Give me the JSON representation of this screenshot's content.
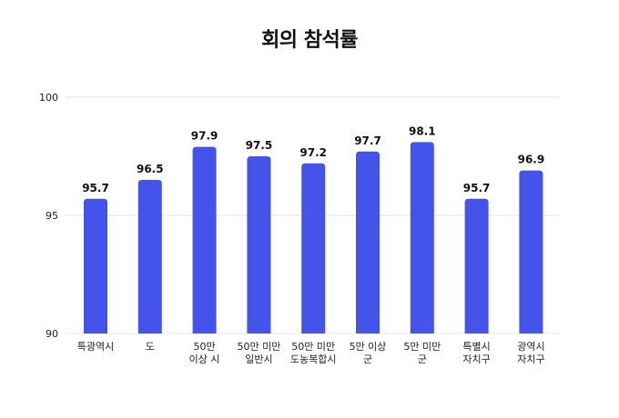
{
  "chart_data": {
    "type": "bar",
    "title": "회의 참석률",
    "categories": [
      [
        "특광역시"
      ],
      [
        "도"
      ],
      [
        "50만",
        "이상 시"
      ],
      [
        "50만 미만",
        "일반시"
      ],
      [
        "50만 미만",
        "도농복합시"
      ],
      [
        "5만 이상",
        "군"
      ],
      [
        "5만 미만",
        "군"
      ],
      [
        "특별시",
        "자치구"
      ],
      [
        "광역시",
        "자치구"
      ]
    ],
    "values": [
      95.7,
      96.5,
      97.9,
      97.5,
      97.2,
      97.7,
      98.1,
      95.7,
      96.9
    ],
    "value_labels": [
      "95.7",
      "96.5",
      "97.9",
      "97.5",
      "97.2",
      "97.7",
      "98.1",
      "95.7",
      "96.9"
    ],
    "ylim": [
      90,
      100
    ],
    "yticks": [
      90,
      95,
      100
    ],
    "grid": true,
    "bar_color": "#4454EA",
    "xlabel": "",
    "ylabel": ""
  }
}
